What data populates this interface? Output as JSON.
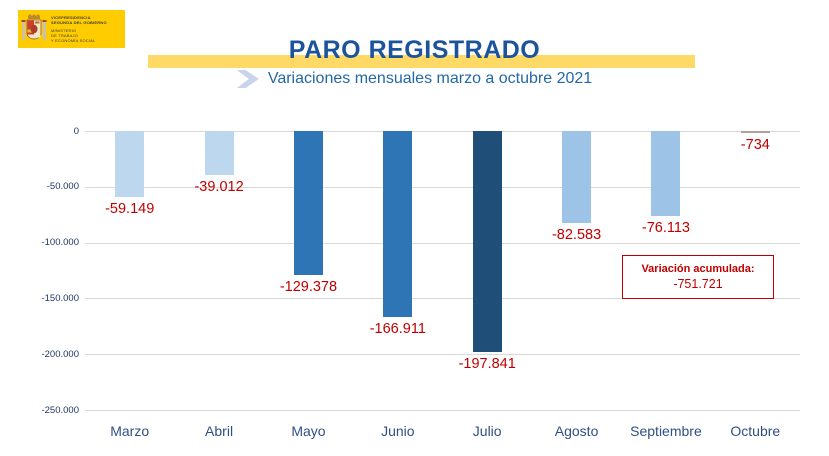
{
  "logo": {
    "entity_lines": [
      "VICEPRESIDENCIA",
      "SEGUNDA DEL GOBIERNO"
    ],
    "ministry_lines": [
      "MINISTERIO",
      "DE TRABAJO",
      "Y ECONOMÍA SOCIAL"
    ],
    "bg_color": "#FFCC00"
  },
  "header": {
    "title": "PARO REGISTRADO",
    "subtitle": "Variaciones mensuales marzo a octubre 2021",
    "band_color": "#FFD966",
    "title_color": "#1C549C"
  },
  "annotation": {
    "label": "Variación acumulada:",
    "value": "-751.721"
  },
  "chart_data": {
    "type": "bar",
    "title": "PARO REGISTRADO",
    "subtitle": "Variaciones mensuales marzo a octubre 2021",
    "categories": [
      "Marzo",
      "Abril",
      "Mayo",
      "Junio",
      "Julio",
      "Agosto",
      "Septiembre",
      "Octubre"
    ],
    "values": [
      -59149,
      -39012,
      -129378,
      -166911,
      -197841,
      -82583,
      -76113,
      -734
    ],
    "value_labels": [
      "-59.149",
      "-39.012",
      "-129.378",
      "-166.911",
      "-197.841",
      "-82.583",
      "-76.113",
      "-734"
    ],
    "bar_colors": [
      "#BDD7EE",
      "#BDD7EE",
      "#2E75B6",
      "#2E75B6",
      "#1F4E79",
      "#9DC3E6",
      "#9DC3E6",
      "#B3A396"
    ],
    "yticks": [
      0,
      -50000,
      -100000,
      -150000,
      -200000,
      -250000
    ],
    "ytick_labels": [
      "0",
      "-50.000",
      "-100.000",
      "-150.000",
      "-200.000",
      "-250.000"
    ],
    "ylim": [
      -250000,
      0
    ],
    "grid": true,
    "legend": "none",
    "value_label_color": "#C00000",
    "axis_text_color": "#1F3864",
    "gridline_color": "#D9D9D9"
  }
}
